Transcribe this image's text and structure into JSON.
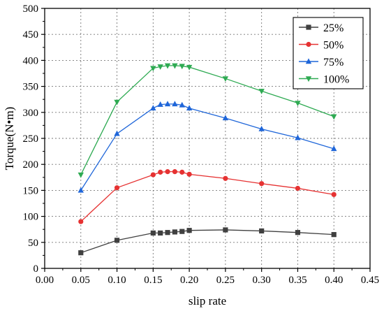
{
  "chart_data": {
    "type": "line",
    "xlabel": "slip rate",
    "ylabel": "Torque(N•m)",
    "xlim": [
      0.0,
      0.45
    ],
    "ylim": [
      0,
      500
    ],
    "xticks": [
      "0.00",
      "0.05",
      "0.10",
      "0.15",
      "0.20",
      "0.25",
      "0.30",
      "0.35",
      "0.40",
      "0.45"
    ],
    "yticks": [
      "0",
      "50",
      "100",
      "150",
      "200",
      "250",
      "300",
      "350",
      "400",
      "450",
      "500"
    ],
    "grid": true,
    "legend_position": "top-right",
    "x": [
      0.05,
      0.1,
      0.15,
      0.16,
      0.17,
      0.18,
      0.19,
      0.2,
      0.25,
      0.3,
      0.35,
      0.4
    ],
    "series": [
      {
        "name": "25%",
        "color": "#404040",
        "marker": "square",
        "values": [
          30,
          54,
          68,
          68,
          69,
          70,
          71,
          73,
          74,
          72,
          69,
          65
        ]
      },
      {
        "name": "50%",
        "color": "#e63232",
        "marker": "circle",
        "values": [
          90,
          155,
          180,
          185,
          186,
          186,
          185,
          181,
          173,
          163,
          154,
          142
        ]
      },
      {
        "name": "75%",
        "color": "#1f66d9",
        "marker": "triangle-up",
        "values": [
          150,
          259,
          308,
          315,
          316,
          316,
          314,
          308,
          289,
          268,
          251,
          230
        ]
      },
      {
        "name": "100%",
        "color": "#2eaa52",
        "marker": "triangle-down",
        "values": [
          180,
          320,
          385,
          388,
          390,
          390,
          389,
          387,
          365,
          341,
          318,
          292
        ]
      }
    ]
  }
}
